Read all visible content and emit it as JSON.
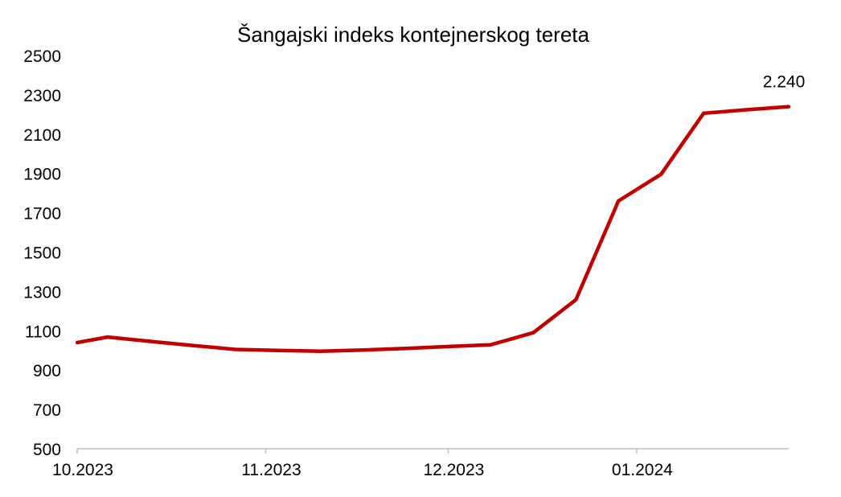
{
  "chart_data": {
    "type": "line",
    "title": "Šangajski indeks kontejnerskog tereta",
    "xlabel": "",
    "ylabel": "",
    "ylim": [
      500,
      2500
    ],
    "y_ticks": [
      "500",
      "700",
      "900",
      "1100",
      "1300",
      "1500",
      "1700",
      "1900",
      "2100",
      "2300",
      "2500"
    ],
    "x_tick_labels": [
      "10.2023",
      "11.2023",
      "12.2023",
      "01.2024"
    ],
    "x_tick_dates": [
      "2023-10-01",
      "2023-11-01",
      "2023-12-01",
      "2024-01-01"
    ],
    "x_range": [
      "2023-10-01",
      "2024-01-26"
    ],
    "grid": false,
    "series": [
      {
        "color": "#C00000",
        "x": [
          "2023-10-01",
          "2023-10-06",
          "2023-10-13",
          "2023-10-20",
          "2023-10-27",
          "2023-11-03",
          "2023-11-10",
          "2023-11-17",
          "2023-11-24",
          "2023-12-01",
          "2023-12-08",
          "2023-12-15",
          "2023-12-22",
          "2023-12-29",
          "2024-01-05",
          "2024-01-12",
          "2024-01-19",
          "2024-01-26"
        ],
        "values": [
          1040,
          1068,
          1046,
          1025,
          1005,
          1000,
          996,
          1002,
          1010,
          1020,
          1029,
          1090,
          1258,
          1760,
          1896,
          2206,
          2224,
          2240
        ]
      }
    ],
    "annotations": [
      {
        "text": "2.240",
        "series": 0,
        "point_index": 17
      }
    ]
  }
}
